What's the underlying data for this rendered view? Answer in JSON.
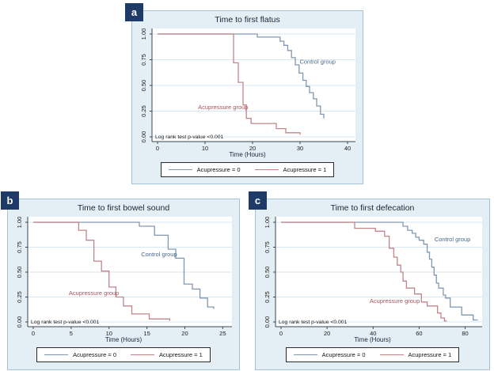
{
  "colors": {
    "panel_bg": "#e4eef5",
    "panel_border": "#a6c2d8",
    "panel_label_bg": "#1e3a66",
    "plot_bg": "#ffffff",
    "grid": "#d8e7f1",
    "axis": "#3a4550",
    "tick_text": "#1a1a1a",
    "title_text": "#1b2636",
    "control_line": "#8098af",
    "acupressure_line": "#c0858b",
    "control_text": "#47688c",
    "acupressure_text": "#a4545f",
    "legend_border": "#2a2a2a"
  },
  "legend": {
    "entries": [
      {
        "label": "Acupressure = 0",
        "color": "#8098af"
      },
      {
        "label": "Acupressure = 1",
        "color": "#c0858b"
      }
    ]
  },
  "chart_data": [
    {
      "type": "line",
      "panel_label": "a",
      "title": "Time to first flatus",
      "xlabel": "Time (Hours)",
      "ylabel": "",
      "xlim": [
        0,
        41
      ],
      "ylim": [
        0,
        1
      ],
      "x_ticks": [
        0,
        10,
        20,
        30,
        40
      ],
      "y_ticks": [
        0,
        0.25,
        0.5,
        0.75,
        1
      ],
      "y_tick_labels": [
        "0.00",
        "0.25",
        "0.50",
        "0.75",
        "1.00"
      ],
      "grid": "horizontal",
      "legend_position": "bottom",
      "pvalue_note": "Log rank test p-value <0.001",
      "series": [
        {
          "name": "Acupressure = 0",
          "line_color": "#8098af",
          "annotation": {
            "text": "Control group",
            "x": 33.7,
            "y": 0.71,
            "color": "#47688c"
          },
          "steps": [
            [
              0,
              1
            ],
            [
              21,
              1
            ],
            [
              21,
              0.97
            ],
            [
              25.8,
              0.97
            ],
            [
              25.8,
              0.93
            ],
            [
              26.6,
              0.93
            ],
            [
              26.6,
              0.89
            ],
            [
              27.4,
              0.89
            ],
            [
              27.4,
              0.84
            ],
            [
              28.2,
              0.84
            ],
            [
              28.2,
              0.77
            ],
            [
              29,
              0.77
            ],
            [
              29,
              0.7
            ],
            [
              29.8,
              0.7
            ],
            [
              29.8,
              0.62
            ],
            [
              30.6,
              0.62
            ],
            [
              30.6,
              0.55
            ],
            [
              31.3,
              0.55
            ],
            [
              31.3,
              0.49
            ],
            [
              32,
              0.49
            ],
            [
              32,
              0.43
            ],
            [
              32.8,
              0.43
            ],
            [
              32.8,
              0.37
            ],
            [
              33.5,
              0.37
            ],
            [
              33.5,
              0.3
            ],
            [
              34.3,
              0.3
            ],
            [
              34.3,
              0.22
            ],
            [
              35,
              0.22
            ],
            [
              35,
              0.18
            ]
          ]
        },
        {
          "name": "Acupressure = 1",
          "line_color": "#c0858b",
          "annotation": {
            "text": "Acupressure group",
            "x": 13.8,
            "y": 0.27,
            "color": "#a4545f"
          },
          "steps": [
            [
              0,
              1
            ],
            [
              16,
              1
            ],
            [
              16,
              0.72
            ],
            [
              17,
              0.72
            ],
            [
              17,
              0.53
            ],
            [
              18,
              0.53
            ],
            [
              18,
              0.31
            ],
            [
              18.7,
              0.31
            ],
            [
              18.7,
              0.18
            ],
            [
              19.7,
              0.18
            ],
            [
              19.7,
              0.13
            ],
            [
              25,
              0.13
            ],
            [
              25,
              0.08
            ],
            [
              27,
              0.08
            ],
            [
              27,
              0.04
            ],
            [
              30,
              0.04
            ],
            [
              30,
              0.02
            ]
          ]
        }
      ]
    },
    {
      "type": "line",
      "panel_label": "b",
      "title": "Time to first bowel sound",
      "xlabel": "Time (Hours)",
      "ylabel": "",
      "xlim": [
        0,
        25.8
      ],
      "ylim": [
        0,
        1
      ],
      "x_ticks": [
        0,
        5,
        10,
        15,
        20,
        25
      ],
      "y_ticks": [
        0,
        0.25,
        0.5,
        0.75,
        1
      ],
      "y_tick_labels": [
        "0.00",
        "0.25",
        "0.50",
        "0.75",
        "1.00"
      ],
      "grid": "horizontal",
      "legend_position": "bottom",
      "pvalue_note": "Log rank test p-value <0.001",
      "series": [
        {
          "name": "Acupressure = 0",
          "line_color": "#8098af",
          "annotation": {
            "text": "Control group",
            "x": 16.6,
            "y": 0.66,
            "color": "#47688c"
          },
          "steps": [
            [
              0,
              1
            ],
            [
              14,
              1
            ],
            [
              14,
              0.96
            ],
            [
              16,
              0.96
            ],
            [
              16,
              0.87
            ],
            [
              17.8,
              0.87
            ],
            [
              17.8,
              0.73
            ],
            [
              18.8,
              0.73
            ],
            [
              18.8,
              0.64
            ],
            [
              19.9,
              0.64
            ],
            [
              19.9,
              0.38
            ],
            [
              21,
              0.38
            ],
            [
              21,
              0.33
            ],
            [
              22,
              0.33
            ],
            [
              22,
              0.24
            ],
            [
              23,
              0.24
            ],
            [
              23,
              0.15
            ],
            [
              23.8,
              0.15
            ],
            [
              23.8,
              0.13
            ]
          ]
        },
        {
          "name": "Acupressure = 1",
          "line_color": "#c0858b",
          "annotation": {
            "text": "Acupressure group",
            "x": 8,
            "y": 0.27,
            "color": "#a4545f"
          },
          "steps": [
            [
              0,
              1
            ],
            [
              6,
              1
            ],
            [
              6,
              0.92
            ],
            [
              7,
              0.92
            ],
            [
              7,
              0.82
            ],
            [
              8,
              0.82
            ],
            [
              8,
              0.61
            ],
            [
              9,
              0.61
            ],
            [
              9,
              0.51
            ],
            [
              10,
              0.51
            ],
            [
              10,
              0.35
            ],
            [
              10.9,
              0.35
            ],
            [
              10.9,
              0.25
            ],
            [
              11.9,
              0.25
            ],
            [
              11.9,
              0.16
            ],
            [
              13,
              0.16
            ],
            [
              13,
              0.08
            ],
            [
              15.3,
              0.08
            ],
            [
              15.3,
              0.03
            ],
            [
              18,
              0.03
            ],
            [
              18,
              0.01
            ]
          ]
        }
      ]
    },
    {
      "type": "line",
      "panel_label": "c",
      "title": "Time to first defecation",
      "xlabel": "Time (Hours)",
      "ylabel": "",
      "xlim": [
        0,
        86
      ],
      "ylim": [
        0,
        1
      ],
      "x_ticks": [
        0,
        20,
        40,
        60,
        80
      ],
      "y_ticks": [
        0,
        0.25,
        0.5,
        0.75,
        1
      ],
      "y_tick_labels": [
        "0.00",
        "0.25",
        "0.50",
        "0.75",
        "1.00"
      ],
      "grid": "horizontal",
      "legend_position": "bottom",
      "pvalue_note": "Log rank test p-value <0.001",
      "series": [
        {
          "name": "Acupressure = 0",
          "line_color": "#8098af",
          "annotation": {
            "text": "Control group",
            "x": 74.5,
            "y": 0.81,
            "color": "#47688c"
          },
          "steps": [
            [
              0,
              1
            ],
            [
              53,
              1
            ],
            [
              53,
              0.96
            ],
            [
              55,
              0.96
            ],
            [
              55,
              0.92
            ],
            [
              57,
              0.92
            ],
            [
              57,
              0.89
            ],
            [
              58.5,
              0.89
            ],
            [
              58.5,
              0.85
            ],
            [
              60,
              0.85
            ],
            [
              60,
              0.82
            ],
            [
              62,
              0.82
            ],
            [
              62,
              0.78
            ],
            [
              63.5,
              0.78
            ],
            [
              63.5,
              0.7
            ],
            [
              64.5,
              0.7
            ],
            [
              64.5,
              0.63
            ],
            [
              65.5,
              0.63
            ],
            [
              65.5,
              0.55
            ],
            [
              66.5,
              0.55
            ],
            [
              66.5,
              0.47
            ],
            [
              67.5,
              0.47
            ],
            [
              67.5,
              0.39
            ],
            [
              68.5,
              0.39
            ],
            [
              68.5,
              0.34
            ],
            [
              70.5,
              0.34
            ],
            [
              70.5,
              0.27
            ],
            [
              71.5,
              0.27
            ],
            [
              71.5,
              0.24
            ],
            [
              73.5,
              0.24
            ],
            [
              73.5,
              0.15
            ],
            [
              78.5,
              0.15
            ],
            [
              78.5,
              0.07
            ],
            [
              83.5,
              0.07
            ],
            [
              83.5,
              0.02
            ],
            [
              85.5,
              0.02
            ]
          ]
        },
        {
          "name": "Acupressure = 1",
          "line_color": "#c0858b",
          "annotation": {
            "text": "Acupressure group",
            "x": 49.4,
            "y": 0.19,
            "color": "#a4545f"
          },
          "steps": [
            [
              0,
              1
            ],
            [
              32,
              1
            ],
            [
              32,
              0.94
            ],
            [
              41,
              0.94
            ],
            [
              41,
              0.91
            ],
            [
              45,
              0.91
            ],
            [
              45,
              0.86
            ],
            [
              47,
              0.86
            ],
            [
              47,
              0.74
            ],
            [
              49,
              0.74
            ],
            [
              49,
              0.65
            ],
            [
              50.5,
              0.65
            ],
            [
              50.5,
              0.57
            ],
            [
              52,
              0.57
            ],
            [
              52,
              0.5
            ],
            [
              53,
              0.5
            ],
            [
              53,
              0.41
            ],
            [
              54.5,
              0.41
            ],
            [
              54.5,
              0.34
            ],
            [
              58,
              0.34
            ],
            [
              58,
              0.28
            ],
            [
              61,
              0.28
            ],
            [
              61,
              0.2
            ],
            [
              63.5,
              0.2
            ],
            [
              63.5,
              0.16
            ],
            [
              68,
              0.16
            ],
            [
              68,
              0.09
            ],
            [
              69.5,
              0.09
            ],
            [
              69.5,
              0.04
            ],
            [
              71,
              0.04
            ],
            [
              71,
              0.01
            ],
            [
              72,
              0.01
            ]
          ]
        }
      ]
    }
  ]
}
